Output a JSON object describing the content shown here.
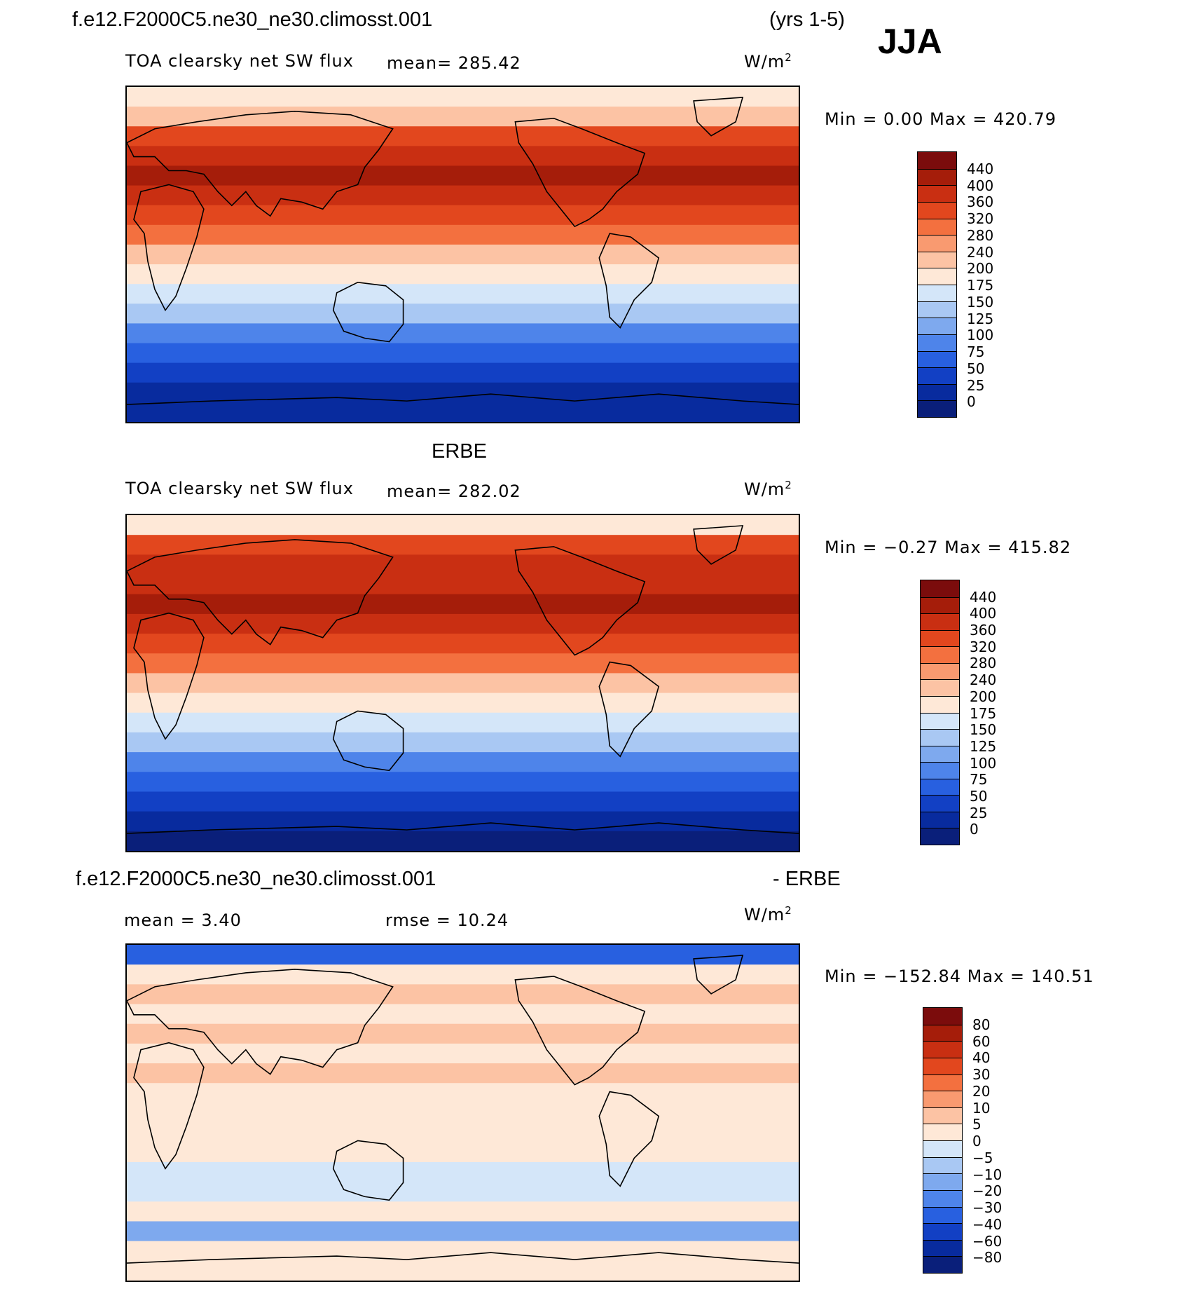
{
  "header": {
    "case_name": "f.e12.F2000C5.ne30_ne30.climosst.001",
    "years": "(yrs 1-5)",
    "season": "JJA"
  },
  "panels": [
    {
      "title": "",
      "variable": "TOA clearsky net SW flux",
      "mean_text": "mean=  285.42",
      "units_base": "W/m",
      "units_exp": "2",
      "minmax": "Min =    0.00 Max = 420.79",
      "colorbar": {
        "labels": [
          "440",
          "400",
          "360",
          "320",
          "280",
          "240",
          "200",
          "175",
          "150",
          "125",
          "100",
          "75",
          "50",
          "25",
          "0"
        ],
        "colors": [
          "#7b0c0c",
          "#a51d0a",
          "#c92f12",
          "#e2471e",
          "#f3703f",
          "#f99a70",
          "#fcc3a4",
          "#fee8d7",
          "#d4e6f9",
          "#a9c8f3",
          "#7ea9ee",
          "#4e84ea",
          "#2860e0",
          "#1240c4",
          "#082b9e",
          "#0a1f7a"
        ]
      },
      "bands": [
        {
          "c": "#fee8d7"
        },
        {
          "c": "#fcc3a4"
        },
        {
          "c": "#e2471e"
        },
        {
          "c": "#c92f12"
        },
        {
          "c": "#a51d0a"
        },
        {
          "c": "#c92f12"
        },
        {
          "c": "#e2471e"
        },
        {
          "c": "#f3703f"
        },
        {
          "c": "#fcc3a4"
        },
        {
          "c": "#fee8d7"
        },
        {
          "c": "#d4e6f9"
        },
        {
          "c": "#a9c8f3"
        },
        {
          "c": "#4e84ea"
        },
        {
          "c": "#2860e0"
        },
        {
          "c": "#1240c4"
        },
        {
          "c": "#082b9e"
        },
        {
          "c": "#082b9e"
        }
      ]
    },
    {
      "title": "ERBE",
      "variable": "TOA clearsky net SW flux",
      "mean_text": "mean=  282.02",
      "units_base": "W/m",
      "units_exp": "2",
      "minmax": "Min =  −0.27 Max = 415.82",
      "colorbar": {
        "labels": [
          "440",
          "400",
          "360",
          "320",
          "280",
          "240",
          "200",
          "175",
          "150",
          "125",
          "100",
          "75",
          "50",
          "25",
          "0"
        ],
        "colors": [
          "#7b0c0c",
          "#a51d0a",
          "#c92f12",
          "#e2471e",
          "#f3703f",
          "#f99a70",
          "#fcc3a4",
          "#fee8d7",
          "#d4e6f9",
          "#a9c8f3",
          "#7ea9ee",
          "#4e84ea",
          "#2860e0",
          "#1240c4",
          "#082b9e",
          "#0a1f7a"
        ]
      },
      "bands": [
        {
          "c": "#fee8d7"
        },
        {
          "c": "#e2471e"
        },
        {
          "c": "#c92f12"
        },
        {
          "c": "#c92f12"
        },
        {
          "c": "#a51d0a"
        },
        {
          "c": "#c92f12"
        },
        {
          "c": "#e2471e"
        },
        {
          "c": "#f3703f"
        },
        {
          "c": "#fcc3a4"
        },
        {
          "c": "#fee8d7"
        },
        {
          "c": "#d4e6f9"
        },
        {
          "c": "#a9c8f3"
        },
        {
          "c": "#4e84ea"
        },
        {
          "c": "#2860e0"
        },
        {
          "c": "#1240c4"
        },
        {
          "c": "#082b9e"
        },
        {
          "c": "#0a1f7a"
        }
      ]
    },
    {
      "title": "f.e12.F2000C5.ne30_ne30.climosst.001",
      "title_suffix": "- ERBE",
      "mean_text": "mean =    3.40",
      "rmse_text": "rmse =   10.24",
      "units_base": "W/m",
      "units_exp": "2",
      "minmax": "Min = −152.84 Max = 140.51",
      "colorbar": {
        "labels": [
          "80",
          "60",
          "40",
          "30",
          "20",
          "10",
          "5",
          "0",
          "−5",
          "−10",
          "−20",
          "−30",
          "−40",
          "−60",
          "−80"
        ],
        "colors": [
          "#7b0c0c",
          "#a51d0a",
          "#c92f12",
          "#e2471e",
          "#f3703f",
          "#f99a70",
          "#fcc3a4",
          "#fee8d7",
          "#d4e6f9",
          "#a9c8f3",
          "#7ea9ee",
          "#4e84ea",
          "#2860e0",
          "#1240c4",
          "#082b9e",
          "#0a1f7a"
        ]
      },
      "bands": [
        {
          "c": "#2860e0"
        },
        {
          "c": "#fee8d7"
        },
        {
          "c": "#fcc3a4"
        },
        {
          "c": "#fee8d7"
        },
        {
          "c": "#fcc3a4"
        },
        {
          "c": "#fee8d7"
        },
        {
          "c": "#fcc3a4"
        },
        {
          "c": "#fee8d7"
        },
        {
          "c": "#fee8d7"
        },
        {
          "c": "#fee8d7"
        },
        {
          "c": "#fee8d7"
        },
        {
          "c": "#d4e6f9"
        },
        {
          "c": "#d4e6f9"
        },
        {
          "c": "#fee8d7"
        },
        {
          "c": "#7ea9ee"
        },
        {
          "c": "#fee8d7"
        },
        {
          "c": "#fee8d7"
        }
      ]
    }
  ]
}
